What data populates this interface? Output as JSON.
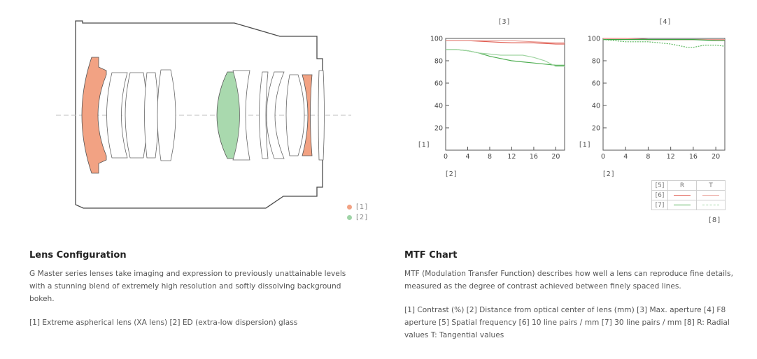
{
  "lens": {
    "legend": [
      {
        "label": "[1]",
        "color": "#f2a283"
      },
      {
        "label": "[2]",
        "color": "#9fd4a7"
      }
    ]
  },
  "charts_labels": {
    "left_title": "[3]",
    "right_title": "[4]",
    "y_tag_left": "[1]",
    "y_tag_right": "[1]",
    "x_tag_left": "[2]",
    "x_tag_right": "[2]",
    "legend_corner": "[5]",
    "legend_r": "R",
    "legend_t": "T",
    "legend_row1": "[6]",
    "legend_row2": "[7]",
    "legend_footer": "[8]"
  },
  "chart_data": [
    {
      "type": "line",
      "title": "[3]",
      "xlabel": "[2]",
      "ylabel": "[1]",
      "xlim": [
        0,
        21.6
      ],
      "ylim": [
        0,
        100
      ],
      "xticks": [
        0,
        4,
        8,
        12,
        16,
        20
      ],
      "yticks": [
        20,
        40,
        60,
        80,
        100
      ],
      "series": [
        {
          "name": "[6] R",
          "color": "#e05a4f",
          "dashed": false,
          "x": [
            0,
            4,
            8,
            12,
            16,
            20,
            21.6
          ],
          "y": [
            98,
            98,
            97,
            96,
            96,
            95,
            95
          ]
        },
        {
          "name": "[6] T",
          "color": "#e99a92",
          "dashed": false,
          "x": [
            0,
            4,
            8,
            12,
            16,
            20,
            21.6
          ],
          "y": [
            98,
            98,
            98,
            98,
            97,
            96,
            96
          ]
        },
        {
          "name": "[7] R",
          "color": "#4fae52",
          "dashed": false,
          "x": [
            0,
            2,
            4,
            6,
            8,
            10,
            12,
            14,
            16,
            18,
            20,
            21.6
          ],
          "y": [
            90,
            90,
            89,
            87,
            84,
            82,
            80,
            79,
            78,
            77,
            76,
            76
          ]
        },
        {
          "name": "[7] T",
          "color": "#9fd4a1",
          "dashed": false,
          "x": [
            0,
            2,
            4,
            6,
            8,
            10,
            12,
            14,
            16,
            18,
            20,
            21.6
          ],
          "y": [
            90,
            90,
            89,
            87,
            86,
            85,
            85,
            85,
            83,
            80,
            75,
            75
          ]
        }
      ]
    },
    {
      "type": "line",
      "title": "[4]",
      "xlabel": "[2]",
      "ylabel": "[1]",
      "xlim": [
        0,
        21.6
      ],
      "ylim": [
        0,
        100
      ],
      "xticks": [
        0,
        4,
        8,
        12,
        16,
        20
      ],
      "yticks": [
        20,
        40,
        60,
        80,
        100
      ],
      "series": [
        {
          "name": "[6] R",
          "color": "#e05a4f",
          "dashed": false,
          "x": [
            0,
            4,
            8,
            12,
            16,
            20,
            21.6
          ],
          "y": [
            100,
            100,
            99,
            99,
            99,
            99,
            99
          ]
        },
        {
          "name": "[6] T",
          "color": "#e99a92",
          "dashed": false,
          "x": [
            0,
            4,
            8,
            12,
            16,
            20,
            21.6
          ],
          "y": [
            100,
            100,
            99,
            99,
            99,
            99,
            99
          ]
        },
        {
          "name": "[7] R",
          "color": "#3a9e3e",
          "dashed": false,
          "x": [
            0,
            4,
            8,
            12,
            16,
            20,
            21.6
          ],
          "y": [
            99,
            99,
            99,
            99,
            99,
            98,
            98
          ]
        },
        {
          "name": "[7] T",
          "color": "#5cb85f",
          "dashed": true,
          "x": [
            0,
            2,
            4,
            6,
            8,
            10,
            12,
            14,
            15,
            16,
            18,
            20,
            21.6
          ],
          "y": [
            99,
            98,
            97,
            97,
            97,
            96,
            95,
            93,
            92,
            92,
            94,
            94,
            93
          ]
        }
      ]
    }
  ],
  "lens_config": {
    "title": "Lens Configuration",
    "description": "G Master series lenses take imaging and expression to previously unattainable levels with a stunning blend of extremely high resolution and softly dissolving background bokeh.",
    "legend_text": "[1] Extreme aspherical lens (XA lens) [2] ED (extra-low dispersion) glass"
  },
  "mtf": {
    "title": "MTF Chart",
    "description": "MTF (Modulation Transfer Function) describes how well a lens can reproduce fine details, measured as the degree of contrast achieved between finely spaced lines.",
    "legend_text": "[1] Contrast (%) [2] Distance from optical center of lens (mm) [3] Max. aperture [4] F8 aperture [5] Spatial frequency [6] 10 line pairs / mm [7] 30 line pairs / mm [8] R: Radial values T: Tangential values"
  }
}
